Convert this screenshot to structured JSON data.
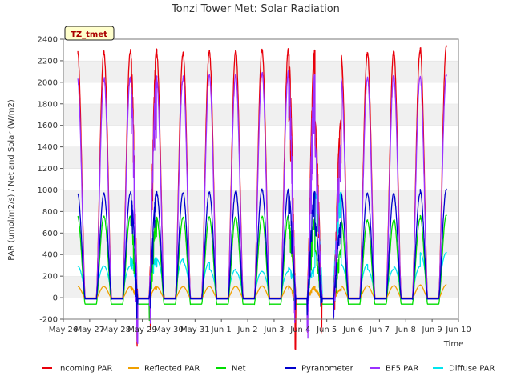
{
  "chart_data": {
    "type": "line",
    "title": "Tonzi Tower Met: Solar Radiation",
    "xlabel": "Time",
    "ylabel": "PAR (umol/m2/s) / Net and Solar (W/m2)",
    "site_tag": "TZ_tmet",
    "ylim": [
      -200,
      2400
    ],
    "yticks": [
      -200,
      0,
      200,
      400,
      600,
      800,
      1000,
      1200,
      1400,
      1600,
      1800,
      2000,
      2200,
      2400
    ],
    "xlim": [
      0,
      15
    ],
    "xticks": [
      0,
      1,
      2,
      3,
      4,
      5,
      6,
      7,
      8,
      9,
      10,
      11,
      12,
      13,
      14,
      15
    ],
    "xtick_labels": [
      "May 26",
      "May 27",
      "May 28",
      "May 29",
      "May 30",
      "May 31",
      "Jun 1",
      "Jun 2",
      "Jun 3",
      "Jun 4",
      "Jun 5",
      "Jun 6",
      "Jun 7",
      "Jun 8",
      "Jun 9",
      "Jun 10"
    ],
    "x_day_offsets": [
      0,
      1,
      2,
      3,
      4,
      5,
      6,
      7,
      8,
      9,
      10,
      11,
      12,
      13
    ],
    "grid": "horizontal bands",
    "legend_position": "bottom",
    "series": [
      {
        "name": "Incoming PAR",
        "color": "#e8000b",
        "night": -3,
        "peaks": [
          2300,
          2290,
          2310,
          2280,
          2300,
          2300,
          2320,
          2320,
          2300,
          1650,
          2280,
          2300,
          2300,
          2350
        ]
      },
      {
        "name": "Reflected PAR",
        "color": "#f0a000",
        "night": -3,
        "peaks": [
          105,
          103,
          105,
          102,
          105,
          105,
          107,
          110,
          107,
          80,
          110,
          110,
          115,
          120
        ]
      },
      {
        "name": "Net",
        "color": "#00dd00",
        "night": -60,
        "peaks": [
          760,
          760,
          750,
          745,
          755,
          750,
          750,
          765,
          730,
          450,
          725,
          720,
          735,
          770
        ]
      },
      {
        "name": "Pyranometer",
        "color": "#0000cc",
        "night": -12,
        "peaks": [
          975,
          970,
          985,
          980,
          985,
          985,
          1010,
          1010,
          985,
          700,
          975,
          975,
          970,
          1010
        ]
      },
      {
        "name": "BF5 PAR",
        "color": "#9b30ff",
        "night": -5,
        "peaks": [
          2040,
          2060,
          2060,
          2040,
          2080,
          2080,
          2090,
          2110,
          2070,
          1420,
          2050,
          2070,
          2060,
          2080
        ]
      },
      {
        "name": "Diffuse PAR",
        "color": "#00e5ee",
        "night": -10,
        "peaks": [
          295,
          295,
          380,
          360,
          330,
          265,
          245,
          245,
          280,
          980,
          310,
          265,
          290,
          420
        ]
      }
    ]
  }
}
